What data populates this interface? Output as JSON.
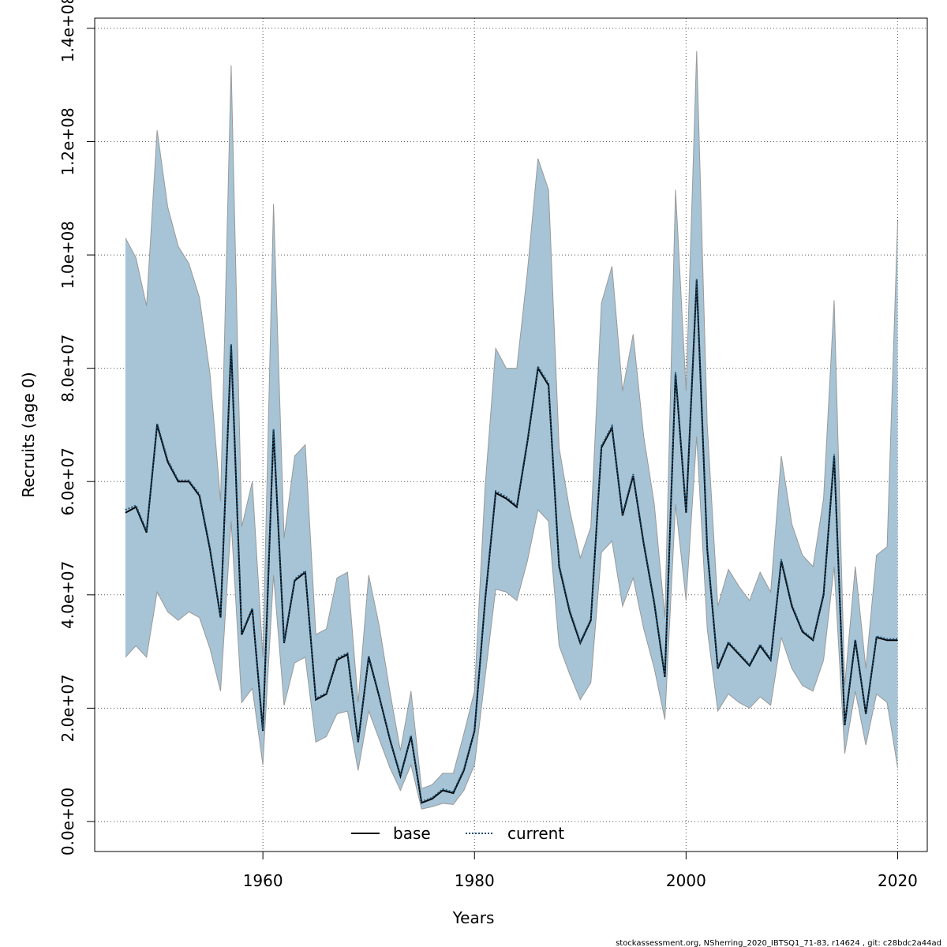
{
  "chart_data": {
    "type": "line",
    "xlabel": "Years",
    "ylabel": "Recruits (age 0)",
    "footer": "stockassessment.org, NSherring_2020_IBTSQ1_71-83, r14624 , git: c28bdc2a44ad",
    "x": [
      1947,
      1948,
      1949,
      1950,
      1951,
      1952,
      1953,
      1954,
      1955,
      1956,
      1957,
      1958,
      1959,
      1960,
      1961,
      1962,
      1963,
      1964,
      1965,
      1966,
      1967,
      1968,
      1969,
      1970,
      1971,
      1972,
      1973,
      1974,
      1975,
      1976,
      1977,
      1978,
      1979,
      1980,
      1981,
      1982,
      1983,
      1984,
      1985,
      1986,
      1987,
      1988,
      1989,
      1990,
      1991,
      1992,
      1993,
      1994,
      1995,
      1996,
      1997,
      1998,
      1999,
      2000,
      2001,
      2002,
      2003,
      2004,
      2005,
      2006,
      2007,
      2008,
      2009,
      2010,
      2011,
      2012,
      2013,
      2014,
      2015,
      2016,
      2017,
      2018,
      2019,
      2020
    ],
    "band": {
      "color": "#a6c4d5",
      "edge": "#999999",
      "upper": [
        103000000,
        99500000,
        91000000,
        122000000,
        108500000,
        101500000,
        98500000,
        92500000,
        79000000,
        56500000,
        133500000,
        52000000,
        60000000,
        29000000,
        109000000,
        50000000,
        64500000,
        66500000,
        33000000,
        34000000,
        43000000,
        44000000,
        21000000,
        43500000,
        34500000,
        23000000,
        12500000,
        23000000,
        5800000,
        6500000,
        8500000,
        8500000,
        15500000,
        23000000,
        59000000,
        83500000,
        80000000,
        80000000,
        97000000,
        117000000,
        111500000,
        66000000,
        55000000,
        46500000,
        52000000,
        91500000,
        98000000,
        76000000,
        86000000,
        68000000,
        56000000,
        36000000,
        111500000,
        76000000,
        136000000,
        70000000,
        38000000,
        44500000,
        41500000,
        39000000,
        44000000,
        40500000,
        64500000,
        52500000,
        47000000,
        45000000,
        57000000,
        92000000,
        24000000,
        45000000,
        27000000,
        47000000,
        48500000,
        106000000
      ],
      "lower": [
        29000000,
        31000000,
        29000000,
        40500000,
        37000000,
        35500000,
        37000000,
        36000000,
        30500000,
        23000000,
        53000000,
        21000000,
        23500000,
        10000000,
        43500000,
        20500000,
        28000000,
        29000000,
        14000000,
        15000000,
        19000000,
        19500000,
        9000000,
        19500000,
        14500000,
        9500000,
        5500000,
        10000000,
        2200000,
        2600000,
        3200000,
        3000000,
        5500000,
        10000000,
        25500000,
        41000000,
        40500000,
        39000000,
        46000000,
        55000000,
        53000000,
        31000000,
        26000000,
        21500000,
        24500000,
        47500000,
        49500000,
        38000000,
        43000000,
        34000000,
        27000000,
        18000000,
        56000000,
        39000000,
        68000000,
        34000000,
        19500000,
        22500000,
        21000000,
        20000000,
        22000000,
        20500000,
        32500000,
        27000000,
        24000000,
        23000000,
        28500000,
        45000000,
        12000000,
        23000000,
        13500000,
        22500000,
        21000000,
        9500000
      ]
    },
    "series": [
      {
        "name": "base",
        "color": "#000000",
        "dash": "none",
        "values": [
          54500000,
          55500000,
          51000000,
          70000000,
          63500000,
          60000000,
          60000000,
          57500000,
          48000000,
          36000000,
          84000000,
          33000000,
          37500000,
          16000000,
          69000000,
          31500000,
          42500000,
          44000000,
          21500000,
          22500000,
          28500000,
          29500000,
          14000000,
          29000000,
          22000000,
          14500000,
          8000000,
          15000000,
          3300000,
          4000000,
          5500000,
          5000000,
          9000000,
          16000000,
          39000000,
          58000000,
          57000000,
          55500000,
          67000000,
          80000000,
          77000000,
          45000000,
          37000000,
          31500000,
          35500000,
          66000000,
          69500000,
          54000000,
          61000000,
          49000000,
          38500000,
          25500000,
          79000000,
          54500000,
          95500000,
          48000000,
          27000000,
          31500000,
          29500000,
          27500000,
          31000000,
          28500000,
          46000000,
          38000000,
          33500000,
          32000000,
          40000000,
          64500000,
          17000000,
          32000000,
          19000000,
          32500000,
          32000000,
          32000000
        ]
      },
      {
        "name": "current",
        "color": "#1b4f72",
        "dash": "2,2",
        "values": [
          55000000,
          55800000,
          51300000,
          70300000,
          63800000,
          60200000,
          60200000,
          57800000,
          48300000,
          36200000,
          84300000,
          33300000,
          37700000,
          16200000,
          69300000,
          31700000,
          42800000,
          44200000,
          21700000,
          22700000,
          28800000,
          29700000,
          14200000,
          29300000,
          22200000,
          14700000,
          8200000,
          15200000,
          3500000,
          4200000,
          5700000,
          5200000,
          9200000,
          16200000,
          39300000,
          58300000,
          57300000,
          55800000,
          67300000,
          80300000,
          77300000,
          45300000,
          37300000,
          31700000,
          35700000,
          66300000,
          69800000,
          54300000,
          61300000,
          49300000,
          38800000,
          25700000,
          79300000,
          54800000,
          95800000,
          48300000,
          27300000,
          31700000,
          29700000,
          27700000,
          31300000,
          28700000,
          46300000,
          38300000,
          33700000,
          32200000,
          40300000,
          64800000,
          17200000,
          32200000,
          19200000,
          32700000,
          32200000,
          32200000
        ]
      }
    ],
    "xlim": [
      1944.1,
      2022.8
    ],
    "xticks": [
      1960,
      1980,
      2000,
      2020
    ],
    "ylim": [
      -5300000,
      141800000
    ],
    "yticks": [
      {
        "value": 0,
        "label": "0.0e+00"
      },
      {
        "value": 20000000,
        "label": "2.0e+07"
      },
      {
        "value": 40000000,
        "label": "4.0e+07"
      },
      {
        "value": 60000000,
        "label": "6.0e+07"
      },
      {
        "value": 80000000,
        "label": "8.0e+07"
      },
      {
        "value": 100000000,
        "label": "1.0e+08"
      },
      {
        "value": 120000000,
        "label": "1.2e+08"
      },
      {
        "value": 140000000,
        "label": "1.4e+08"
      }
    ],
    "grid": true,
    "legend": "bottom"
  }
}
